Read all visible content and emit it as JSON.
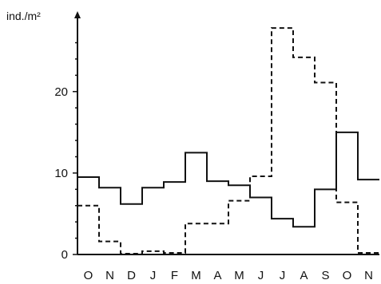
{
  "chart_data": {
    "type": "line",
    "step": true,
    "title": "",
    "ylabel": "ind./m²",
    "xlabel": "",
    "categories": [
      "O",
      "N",
      "D",
      "J",
      "F",
      "M",
      "A",
      "M",
      "J",
      "J",
      "A",
      "S",
      "O",
      "N"
    ],
    "ylim": [
      0,
      28.5
    ],
    "y_ticks": [
      0,
      10,
      20
    ],
    "grid": false,
    "legend": "none",
    "series": [
      {
        "style": "solid",
        "color": "#111111",
        "values": [
          9.5,
          8.2,
          6.2,
          8.2,
          8.9,
          12.5,
          9.0,
          8.5,
          7.0,
          4.4,
          3.4,
          8.0,
          15.0,
          9.2
        ]
      },
      {
        "style": "dashed",
        "color": "#111111",
        "values": [
          6.0,
          1.6,
          0.1,
          0.4,
          0.2,
          3.8,
          3.8,
          6.6,
          9.6,
          27.8,
          24.2,
          21.1,
          6.4,
          0.2
        ]
      }
    ]
  }
}
